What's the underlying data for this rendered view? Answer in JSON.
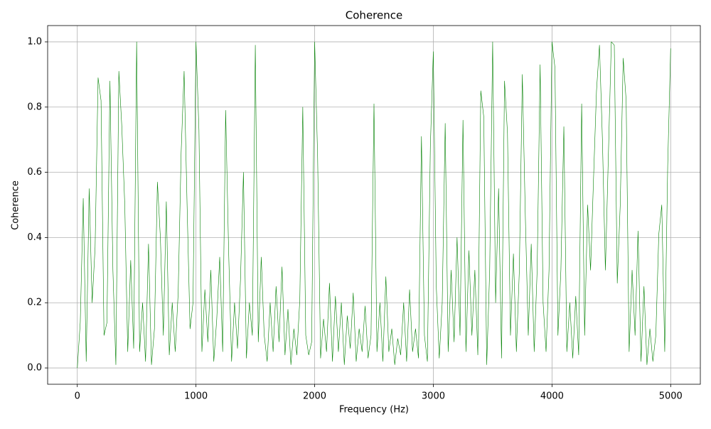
{
  "chart_data": {
    "type": "line",
    "title": "Coherence",
    "xlabel": "Frequency (Hz)",
    "ylabel": "Coherence",
    "grid": true,
    "xlim": [
      -250,
      5250
    ],
    "xticks": [
      0,
      1000,
      2000,
      3000,
      4000,
      5000
    ],
    "ylim": [
      -0.05,
      1.05
    ],
    "yticks": [
      {
        "value": 0,
        "label": "0.0"
      },
      0.2,
      0.4,
      0.6,
      0.8,
      {
        "value": 1,
        "label": "1.0"
      }
    ],
    "x": [
      0,
      25,
      50,
      75,
      100,
      125,
      150,
      175,
      200,
      225,
      250,
      275,
      300,
      325,
      350,
      375,
      400,
      425,
      450,
      475,
      500,
      525,
      550,
      575,
      600,
      625,
      650,
      675,
      700,
      725,
      750,
      775,
      800,
      825,
      850,
      875,
      900,
      925,
      950,
      975,
      1000,
      1025,
      1050,
      1075,
      1100,
      1125,
      1150,
      1175,
      1200,
      1225,
      1250,
      1275,
      1300,
      1325,
      1350,
      1375,
      1400,
      1425,
      1450,
      1475,
      1500,
      1525,
      1550,
      1575,
      1600,
      1625,
      1650,
      1675,
      1700,
      1725,
      1750,
      1775,
      1800,
      1825,
      1850,
      1875,
      1900,
      1925,
      1950,
      1975,
      2000,
      2025,
      2050,
      2075,
      2100,
      2125,
      2150,
      2175,
      2200,
      2225,
      2250,
      2275,
      2300,
      2325,
      2350,
      2375,
      2400,
      2425,
      2450,
      2475,
      2500,
      2525,
      2550,
      2575,
      2600,
      2625,
      2650,
      2675,
      2700,
      2725,
      2750,
      2775,
      2800,
      2825,
      2850,
      2875,
      2900,
      2925,
      2950,
      2975,
      3000,
      3025,
      3050,
      3075,
      3100,
      3125,
      3150,
      3175,
      3200,
      3225,
      3250,
      3275,
      3300,
      3325,
      3350,
      3375,
      3400,
      3425,
      3450,
      3475,
      3500,
      3525,
      3550,
      3575,
      3600,
      3625,
      3650,
      3675,
      3700,
      3725,
      3750,
      3775,
      3800,
      3825,
      3850,
      3875,
      3900,
      3925,
      3950,
      3975,
      4000,
      4025,
      4050,
      4075,
      4100,
      4125,
      4150,
      4175,
      4200,
      4225,
      4250,
      4275,
      4300,
      4325,
      4350,
      4375,
      4400,
      4425,
      4450,
      4475,
      4500,
      4525,
      4550,
      4575,
      4600,
      4625,
      4650,
      4675,
      4700,
      4725,
      4750,
      4775,
      4800,
      4825,
      4850,
      4875,
      4900,
      4925,
      4950,
      4975,
      5000
    ],
    "series": [
      {
        "color": "#008000",
        "values": [
          0.0,
          0.14,
          0.52,
          0.02,
          0.55,
          0.2,
          0.37,
          0.89,
          0.82,
          0.1,
          0.14,
          0.88,
          0.3,
          0.01,
          0.91,
          0.74,
          0.5,
          0.05,
          0.33,
          0.06,
          1.0,
          0.05,
          0.2,
          0.02,
          0.38,
          0.01,
          0.12,
          0.57,
          0.4,
          0.1,
          0.51,
          0.04,
          0.2,
          0.05,
          0.23,
          0.66,
          0.91,
          0.5,
          0.12,
          0.2,
          1.0,
          0.73,
          0.05,
          0.24,
          0.08,
          0.3,
          0.02,
          0.15,
          0.34,
          0.05,
          0.79,
          0.36,
          0.02,
          0.2,
          0.06,
          0.27,
          0.6,
          0.03,
          0.2,
          0.1,
          0.99,
          0.08,
          0.34,
          0.1,
          0.02,
          0.2,
          0.05,
          0.25,
          0.08,
          0.31,
          0.04,
          0.18,
          0.01,
          0.12,
          0.04,
          0.21,
          0.8,
          0.1,
          0.04,
          0.08,
          1.0,
          0.65,
          0.03,
          0.15,
          0.05,
          0.26,
          0.02,
          0.22,
          0.05,
          0.2,
          0.01,
          0.16,
          0.06,
          0.23,
          0.02,
          0.12,
          0.05,
          0.19,
          0.03,
          0.1,
          0.81,
          0.05,
          0.2,
          0.02,
          0.28,
          0.05,
          0.12,
          0.01,
          0.09,
          0.04,
          0.2,
          0.02,
          0.24,
          0.05,
          0.12,
          0.03,
          0.71,
          0.1,
          0.02,
          0.68,
          0.97,
          0.25,
          0.03,
          0.2,
          0.75,
          0.05,
          0.3,
          0.08,
          0.4,
          0.1,
          0.76,
          0.05,
          0.36,
          0.1,
          0.3,
          0.04,
          0.85,
          0.77,
          0.01,
          0.3,
          1.0,
          0.2,
          0.55,
          0.03,
          0.88,
          0.72,
          0.1,
          0.35,
          0.05,
          0.3,
          0.9,
          0.47,
          0.1,
          0.38,
          0.05,
          0.3,
          0.93,
          0.2,
          0.05,
          0.3,
          1.0,
          0.92,
          0.1,
          0.3,
          0.74,
          0.05,
          0.2,
          0.03,
          0.22,
          0.04,
          0.81,
          0.1,
          0.5,
          0.3,
          0.58,
          0.85,
          0.99,
          0.7,
          0.3,
          0.65,
          1.0,
          0.99,
          0.26,
          0.5,
          0.95,
          0.82,
          0.05,
          0.3,
          0.1,
          0.42,
          0.02,
          0.25,
          0.01,
          0.12,
          0.02,
          0.1,
          0.41,
          0.5,
          0.05,
          0.62,
          0.98
        ]
      }
    ]
  }
}
